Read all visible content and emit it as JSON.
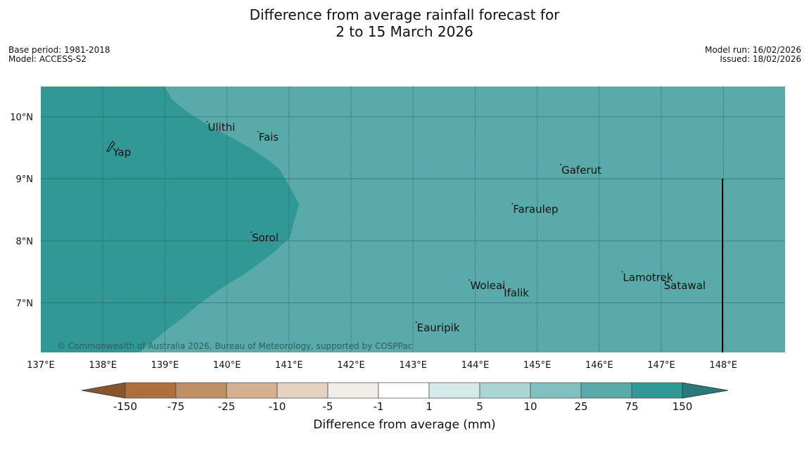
{
  "title": {
    "line1": "Difference from average rainfall forecast for",
    "line2": "2 to 15 March 2026"
  },
  "meta_left": {
    "base_period": "Base period: 1981-2018",
    "model": "Model: ACCESS-S2"
  },
  "meta_right": {
    "model_run": "Model run: 16/02/2026",
    "issued": "Issued: 18/02/2026"
  },
  "map": {
    "lon_ticks": [
      {
        "value": 137,
        "label": "137°E"
      },
      {
        "value": 138,
        "label": "138°E"
      },
      {
        "value": 139,
        "label": "139°E"
      },
      {
        "value": 140,
        "label": "140°E"
      },
      {
        "value": 141,
        "label": "141°E"
      },
      {
        "value": 142,
        "label": "142°E"
      },
      {
        "value": 143,
        "label": "143°E"
      },
      {
        "value": 144,
        "label": "144°E"
      },
      {
        "value": 145,
        "label": "145°E"
      },
      {
        "value": 146,
        "label": "146°E"
      },
      {
        "value": 147,
        "label": "147°E"
      },
      {
        "value": 148,
        "label": "148°E"
      }
    ],
    "lat_ticks": [
      {
        "value": 10,
        "label": "10°N"
      },
      {
        "value": 9,
        "label": "9°N"
      },
      {
        "value": 8,
        "label": "8°N"
      },
      {
        "value": 7,
        "label": "7°N"
      }
    ],
    "places": [
      {
        "name": "Ulithi",
        "lon": 139.68,
        "lat": 9.92
      },
      {
        "name": "Fais",
        "lon": 140.5,
        "lat": 9.76
      },
      {
        "name": "Yap",
        "lon": 138.15,
        "lat": 9.52
      },
      {
        "name": "Gaferut",
        "lon": 145.38,
        "lat": 9.23
      },
      {
        "name": "Faraulep",
        "lon": 144.6,
        "lat": 8.6
      },
      {
        "name": "Sorol",
        "lon": 140.39,
        "lat": 8.14
      },
      {
        "name": "Lamotrek",
        "lon": 146.37,
        "lat": 7.5
      },
      {
        "name": "Woleai",
        "lon": 143.91,
        "lat": 7.37
      },
      {
        "name": "Ifalik",
        "lon": 144.45,
        "lat": 7.25
      },
      {
        "name": "Satawal",
        "lon": 147.03,
        "lat": 7.37
      },
      {
        "name": "Eauripik",
        "lon": 143.05,
        "lat": 6.69
      }
    ],
    "copyright": "© Commonwealth of Australia 2026, Bureau of Meteorology, supported by COSPPac",
    "colors": {
      "base_fill": "#5aaaa9",
      "wetter_fill": "#319895",
      "boundary_line": "#000000"
    }
  },
  "colorbar": {
    "ticks": [
      "-150",
      "-75",
      "-25",
      "-10",
      "-5",
      "-1",
      "1",
      "5",
      "10",
      "25",
      "75",
      "150"
    ],
    "colors": [
      "#af6f3a",
      "#bf9065",
      "#d4b190",
      "#e5d2c0",
      "#f1eee9",
      "#ffffff",
      "#d6eaea",
      "#abd5d5",
      "#82c0bf",
      "#5aaaa9",
      "#319895",
      "#2a7877"
    ],
    "end_low_color": "#8a5528",
    "end_high_color": "#2a7877",
    "label": "Difference from average (mm)"
  }
}
